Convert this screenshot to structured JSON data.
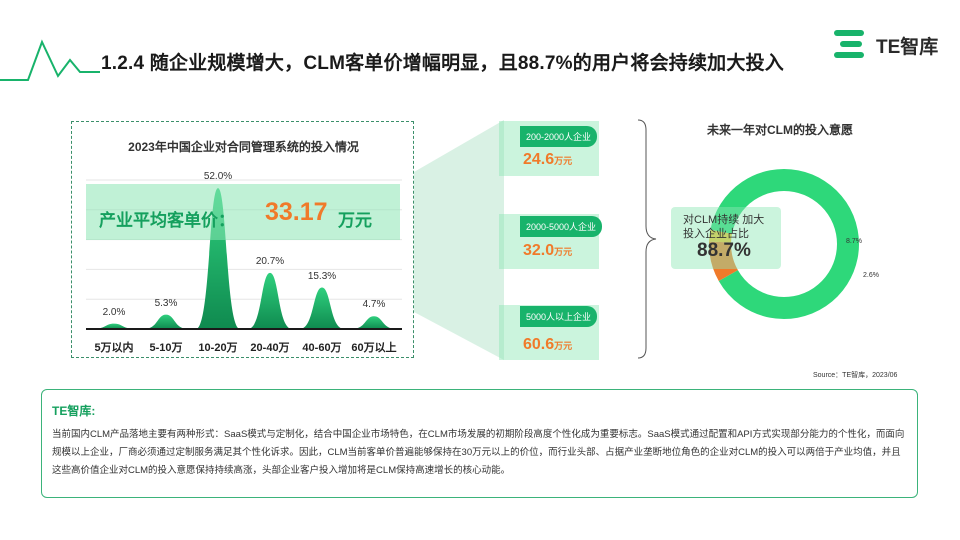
{
  "header": {
    "title": "1.2.4 随企业规模增大，CLM客单价增幅明显，且88.7%的用户将会持续加大投入",
    "brand": "TE智库",
    "brand_color": "#18b36b"
  },
  "left_chart": {
    "title": "2023年中国企业对合同管理系统的投入情况",
    "banner_label": "产业平均客单价：",
    "banner_value": "33.17",
    "banner_unit": "万元"
  },
  "chart_data": [
    {
      "type": "area",
      "title": "2023年中国企业对合同管理系统的投入情况",
      "categories": [
        "5万以内",
        "5-10万",
        "10-20万",
        "20-40万",
        "40-60万",
        "60万以上"
      ],
      "values": [
        2.0,
        5.3,
        52.0,
        20.7,
        15.3,
        4.7
      ],
      "value_labels": [
        "2.0%",
        "5.3%",
        "52.0%",
        "20.7%",
        "15.3%",
        "4.7%"
      ],
      "color": "#18b36b",
      "grid": true
    },
    {
      "type": "pie",
      "title": "未来一年对CLM的投入意愿",
      "values": [
        88.7,
        8.7,
        2.6
      ],
      "value_labels": [
        "88.7%",
        "8.7%",
        "2.6%"
      ],
      "colors": [
        "#2ed87a",
        "#f07a2a",
        "#f2c230"
      ],
      "center_label": "对CLM持续 加大 投入企业占比",
      "center_value": "88.7%"
    }
  ],
  "cards": [
    {
      "tag": "200-2000人企业",
      "value": "24.6",
      "unit": "万元"
    },
    {
      "tag": "2000-5000人企业",
      "value": "32.0",
      "unit": "万元"
    },
    {
      "tag": "5000人以上企业",
      "value": "60.6",
      "unit": "万元"
    }
  ],
  "donut": {
    "title": "未来一年对CLM的投入意愿",
    "center_line1": "对CLM持续 加大",
    "center_line2": "投入企业占比",
    "center_value": "88.7%"
  },
  "source": "Source：TE智库，2023/06",
  "insight": {
    "title": "TE智库:",
    "text": "当前国内CLM产品落地主要有两种形式：SaaS模式与定制化，结合中国企业市场特色，在CLM市场发展的初期阶段高度个性化成为重要标志。SaaS模式通过配置和API方式实现部分能力的个性化，而面向规模以上企业，厂商必须通过定制服务满足其个性化诉求。因此，CLM当前客单价普遍能够保持在30万元以上的价位，而行业头部、占据产业垄断地位角色的企业对CLM的投入可以两倍于产业均值，并且这些高价值企业对CLM的投入意愿保持持续高涨，头部企业客户投入增加将是CLM保持高速增长的核心动能。"
  }
}
